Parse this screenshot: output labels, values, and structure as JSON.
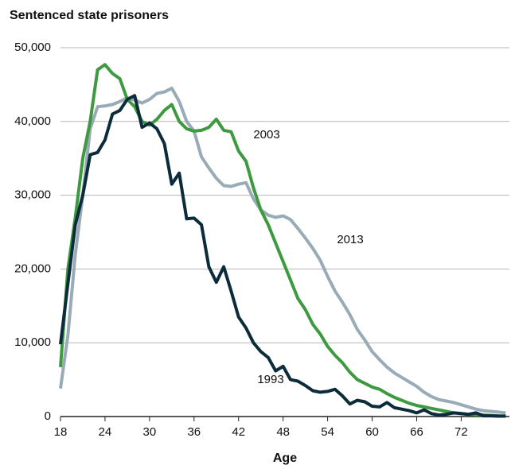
{
  "chart_data": {
    "type": "line",
    "title": "Sentenced state prisoners",
    "x_label": "Age",
    "x": [
      18,
      19,
      20,
      21,
      22,
      23,
      24,
      25,
      26,
      27,
      28,
      29,
      30,
      31,
      32,
      33,
      34,
      35,
      36,
      37,
      38,
      39,
      40,
      41,
      42,
      43,
      44,
      45,
      46,
      47,
      48,
      49,
      50,
      51,
      52,
      53,
      54,
      55,
      56,
      57,
      58,
      59,
      60,
      61,
      62,
      63,
      64,
      65,
      66,
      67,
      68,
      69,
      70,
      71,
      72,
      73,
      74,
      75,
      76,
      77,
      78
    ],
    "series": [
      {
        "name": "2013",
        "color": "#98abb6",
        "values": [
          3800,
          11000,
          22000,
          30000,
          39000,
          42000,
          42100,
          42300,
          42700,
          43200,
          42900,
          42500,
          43000,
          43800,
          44000,
          44500,
          42700,
          40000,
          38700,
          35200,
          33700,
          32300,
          31300,
          31200,
          31500,
          31700,
          29500,
          28000,
          27300,
          27000,
          27200,
          26700,
          25500,
          24200,
          22800,
          21200,
          19000,
          17000,
          15500,
          13800,
          11800,
          10400,
          8800,
          7700,
          6700,
          5900,
          5300,
          4700,
          4100,
          3300,
          2700,
          2300,
          2100,
          1900,
          1600,
          1300,
          1000,
          800,
          700,
          600,
          500
        ]
      },
      {
        "name": "2003",
        "color": "#3d9a40",
        "values": [
          6700,
          20000,
          27000,
          35000,
          40000,
          47000,
          47700,
          46500,
          45800,
          43000,
          42000,
          40000,
          39500,
          40300,
          41500,
          42300,
          40000,
          39000,
          38700,
          38800,
          39200,
          40300,
          38800,
          38600,
          36000,
          34600,
          31000,
          28000,
          26000,
          23500,
          21000,
          18500,
          16000,
          14500,
          12500,
          11200,
          9500,
          8300,
          7300,
          6000,
          5000,
          4500,
          4000,
          3700,
          3100,
          2600,
          2200,
          1800,
          1500,
          1300,
          1100,
          900,
          700,
          500,
          400,
          300,
          250,
          200,
          150,
          100,
          80
        ]
      },
      {
        "name": "1993",
        "color": "#0d2c3b",
        "values": [
          9800,
          18000,
          26000,
          30000,
          35500,
          35800,
          37500,
          41000,
          41500,
          43000,
          43500,
          39200,
          39800,
          39000,
          37000,
          31500,
          33000,
          26800,
          26900,
          26000,
          20300,
          18200,
          20300,
          17000,
          13500,
          12000,
          10000,
          8800,
          8000,
          6200,
          6800,
          5000,
          4800,
          4200,
          3500,
          3300,
          3400,
          3700,
          2800,
          1700,
          2200,
          2000,
          1400,
          1300,
          1900,
          1200,
          1000,
          800,
          500,
          900,
          400,
          200,
          300,
          500,
          400,
          300,
          500,
          100,
          100,
          50,
          50
        ]
      }
    ],
    "xlim": [
      18,
      78.5
    ],
    "ylim": [
      0,
      50000
    ],
    "xticks": [
      18,
      24,
      30,
      36,
      42,
      48,
      54,
      60,
      66,
      72
    ],
    "yticks": [
      0,
      {
        "value": 10000,
        "label": "10,000"
      },
      {
        "value": 20000,
        "label": "20,000"
      },
      {
        "value": 30000,
        "label": "30,000"
      },
      {
        "value": 40000,
        "label": "40,000"
      },
      {
        "value": 50000,
        "label": "50,000"
      }
    ],
    "grid": true
  }
}
